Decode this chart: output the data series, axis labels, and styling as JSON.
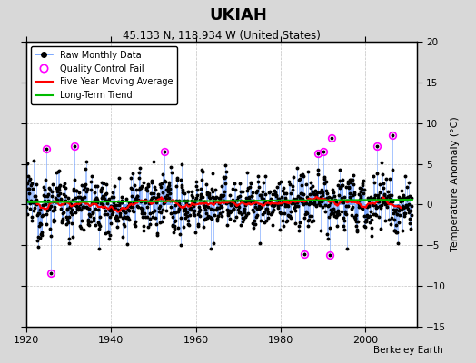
{
  "title": "UKIAH",
  "subtitle": "45.133 N, 118.934 W (United States)",
  "ylabel": "Temperature Anomaly (°C)",
  "attribution": "Berkeley Earth",
  "xlim": [
    1920,
    2012
  ],
  "ylim": [
    -15,
    20
  ],
  "yticks": [
    -15,
    -10,
    -5,
    0,
    5,
    10,
    15,
    20
  ],
  "xticks": [
    1920,
    1940,
    1960,
    1980,
    2000
  ],
  "bg_color": "#d8d8d8",
  "plot_bg_color": "#ffffff",
  "raw_line_color": "#6699ff",
  "raw_dot_color": "#000000",
  "qc_fail_color": "#ff00ff",
  "moving_avg_color": "#ff0000",
  "trend_color": "#00bb00",
  "seed": 12345
}
